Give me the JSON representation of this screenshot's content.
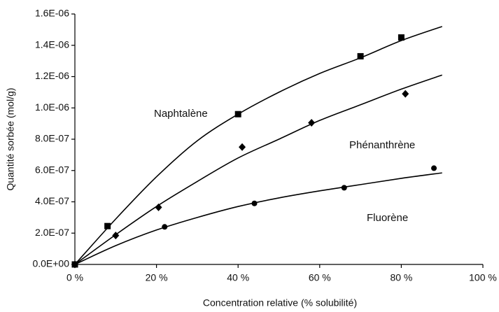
{
  "chart_data": {
    "type": "scatter",
    "xlabel": "Concentration relative (% solubilité)",
    "ylabel": "Quantité sorbée (mol/g)",
    "xlim": [
      0,
      100
    ],
    "xticks": [
      {
        "value": 0,
        "label": "0 %"
      },
      {
        "value": 20,
        "label": "20 %"
      },
      {
        "value": 40,
        "label": "40 %"
      },
      {
        "value": 60,
        "label": "60 %"
      },
      {
        "value": 80,
        "label": "80 %"
      },
      {
        "value": 100,
        "label": "100 %"
      }
    ],
    "ylim": [
      0,
      1.6e-06
    ],
    "yticks": [
      {
        "value": 0,
        "label": "0.0E+00"
      },
      {
        "value": 2e-07,
        "label": "2.0E-07"
      },
      {
        "value": 4e-07,
        "label": "4.0E-07"
      },
      {
        "value": 6e-07,
        "label": "6.0E-07"
      },
      {
        "value": 8e-07,
        "label": "8.0E-07"
      },
      {
        "value": 1e-06,
        "label": "1.0E-06"
      },
      {
        "value": 1.2e-06,
        "label": "1.2E-06"
      },
      {
        "value": 1.4e-06,
        "label": "1.4E-06"
      },
      {
        "value": 1.6e-06,
        "label": "1.6E-06"
      }
    ],
    "grid": false,
    "series": [
      {
        "name": "Naphtalène",
        "color": "#000000",
        "marker": "square",
        "x": [
          0,
          8,
          40,
          70,
          80
        ],
        "values": [
          0,
          2.45e-07,
          9.6e-07,
          1.33e-06,
          1.45e-06
        ],
        "fit_x": [
          0,
          10,
          20,
          30,
          40,
          50,
          60,
          70,
          80,
          90
        ],
        "fit_values": [
          0,
          2.9e-07,
          5.6e-07,
          7.9e-07,
          9.6e-07,
          1.1e-06,
          1.22e-06,
          1.32e-06,
          1.43e-06,
          1.52e-06
        ]
      },
      {
        "name": "Phénanthrène",
        "color": "#000000",
        "marker": "diamond",
        "x": [
          0,
          10,
          20.5,
          41,
          58,
          81
        ],
        "values": [
          0,
          1.85e-07,
          3.65e-07,
          7.5e-07,
          9.05e-07,
          1.09e-06
        ],
        "fit_x": [
          0,
          10,
          20,
          30,
          40,
          50,
          60,
          70,
          80,
          90
        ],
        "fit_values": [
          0,
          1.9e-07,
          3.7e-07,
          5.3e-07,
          6.8e-07,
          8e-07,
          9.2e-07,
          1.02e-06,
          1.12e-06,
          1.21e-06
        ]
      },
      {
        "name": "Fluorène",
        "color": "#000000",
        "marker": "circle",
        "x": [
          0,
          22,
          44,
          66,
          88
        ],
        "values": [
          0,
          2.4e-07,
          3.9e-07,
          4.9e-07,
          6.15e-07
        ],
        "fit_x": [
          0,
          10,
          20,
          30,
          40,
          50,
          60,
          70,
          80,
          90
        ],
        "fit_values": [
          0,
          1.2e-07,
          2.2e-07,
          3e-07,
          3.7e-07,
          4.25e-07,
          4.7e-07,
          5.1e-07,
          5.5e-07,
          5.85e-07
        ]
      }
    ]
  }
}
